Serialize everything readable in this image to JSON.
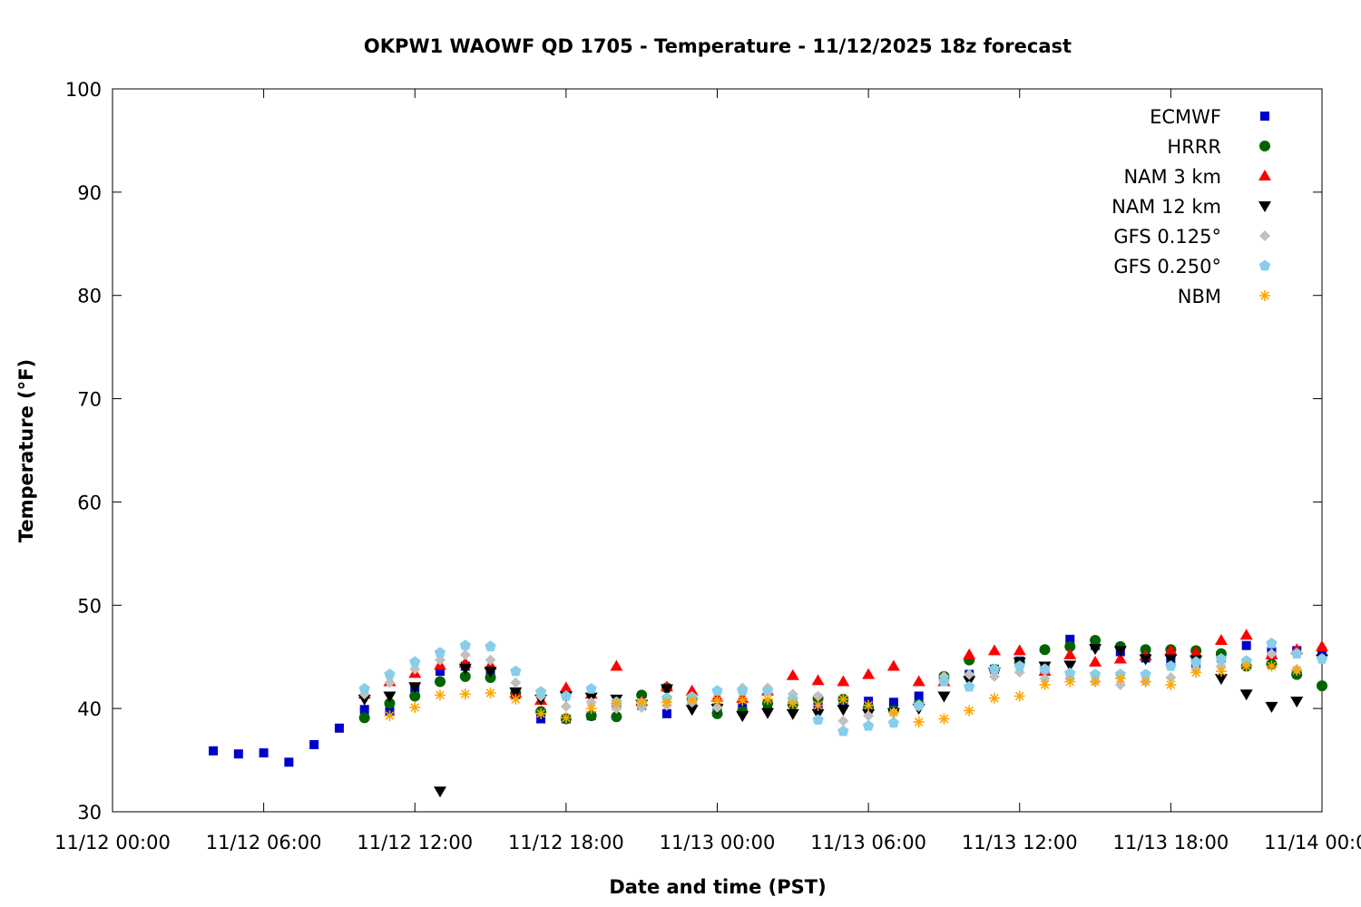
{
  "chart_data": {
    "type": "scatter",
    "title": "OKPW1 WAOWF QD 1705 - Temperature - 11/12/2025 18z forecast",
    "xlabel": "Date and time (PST)",
    "ylabel": "Temperature (°F)",
    "x_unit": "hours since 11/12 00:00 PST",
    "xlim": [
      0,
      48
    ],
    "ylim": [
      30,
      100
    ],
    "x_ticks": [
      {
        "value": 0,
        "label": "11/12 00:00"
      },
      {
        "value": 6,
        "label": "11/12 06:00"
      },
      {
        "value": 12,
        "label": "11/12 12:00"
      },
      {
        "value": 18,
        "label": "11/12 18:00"
      },
      {
        "value": 24,
        "label": "11/13 00:00"
      },
      {
        "value": 30,
        "label": "11/13 06:00"
      },
      {
        "value": 36,
        "label": "11/13 12:00"
      },
      {
        "value": 42,
        "label": "11/13 18:00"
      },
      {
        "value": 48,
        "label": "11/14 00:00"
      }
    ],
    "y_ticks": [
      30,
      40,
      50,
      60,
      70,
      80,
      90,
      100
    ],
    "grid": false,
    "legend_position": "top-right",
    "series": [
      {
        "name": "ECMWF",
        "marker": "square",
        "color": "#0000cc",
        "start_hour": 4,
        "values": [
          35.9,
          35.6,
          35.7,
          34.8,
          36.5,
          38.1,
          39.9,
          39.7,
          42.0,
          43.6,
          44.1,
          43.6,
          41.3,
          39.0,
          39.0,
          39.3,
          40.3,
          40.3,
          39.5,
          40.8,
          40.1,
          40.1,
          40.4,
          40.5,
          40.3,
          40.7,
          40.7,
          40.6,
          41.2,
          43.0,
          43.3,
          43.8,
          44.6,
          43.9,
          46.7,
          46.1,
          45.5,
          44.9,
          44.6,
          44.4,
          44.9,
          46.1,
          45.5,
          45.6,
          45.5
        ]
      },
      {
        "name": "HRRR",
        "marker": "circle",
        "color": "#006400",
        "start_hour": 10,
        "values": [
          39.1,
          40.5,
          41.2,
          42.6,
          43.1,
          43.0,
          41.5,
          39.7,
          39.0,
          39.3,
          39.2,
          41.3,
          42.0,
          40.9,
          39.5,
          39.7,
          40.5,
          40.4,
          41.0,
          40.9,
          40.1,
          39.8,
          40.4,
          43.1,
          44.7,
          43.8,
          44.5,
          45.7,
          46.0,
          46.6,
          46.0,
          45.7,
          45.7,
          45.6,
          45.3,
          44.1,
          44.3,
          43.3,
          42.2
        ]
      },
      {
        "name": "NAM 3 km",
        "marker": "triangle-up",
        "color": "#ff0000",
        "start_hour": 10,
        "values": [
          41.4,
          42.6,
          43.4,
          44.2,
          44.4,
          44.2,
          41.5,
          40.8,
          42.0,
          41.4,
          44.1,
          40.7,
          42.1,
          41.7,
          41.1,
          41.0,
          41.7,
          43.2,
          42.7,
          42.6,
          43.3,
          44.1,
          42.6,
          42.6,
          45.2,
          45.6,
          45.6,
          43.6,
          45.2,
          44.5,
          44.8,
          45.1,
          45.6,
          45.4,
          46.6,
          47.1,
          45.2,
          45.7,
          46.0
        ]
      },
      {
        "name": "NAM 12 km",
        "marker": "triangle-down",
        "color": "#000000",
        "start_hour": 10,
        "values": [
          40.9,
          41.2,
          42.1,
          32.0,
          43.9,
          43.6,
          41.6,
          40.9,
          41.2,
          41.1,
          40.9,
          40.4,
          41.9,
          39.9,
          40.0,
          39.3,
          39.6,
          39.5,
          39.5,
          39.9,
          39.5,
          39.6,
          40.0,
          41.2,
          42.7,
          43.5,
          44.5,
          44.1,
          44.2,
          45.8,
          45.6,
          44.8,
          44.8,
          44.7,
          42.9,
          41.4,
          40.2,
          40.7,
          44.8
        ]
      },
      {
        "name": "GFS 0.125°",
        "marker": "diamond",
        "color": "#c0c0c0",
        "start_hour": 10,
        "values": [
          41.4,
          42.5,
          43.8,
          44.7,
          45.2,
          44.7,
          42.5,
          41.2,
          40.2,
          40.6,
          40.0,
          40.1,
          40.3,
          40.6,
          40.1,
          42.0,
          42.0,
          41.4,
          41.2,
          38.8,
          39.3,
          39.6,
          40.2,
          43.1,
          43.3,
          43.1,
          43.5,
          42.9,
          42.9,
          42.6,
          42.3,
          42.6,
          43.0,
          43.8,
          44.1,
          44.4,
          45.3,
          43.8,
          44.8
        ]
      },
      {
        "name": "GFS 0.250°",
        "marker": "pentagon",
        "color": "#87ceeb",
        "start_hour": 10,
        "values": [
          41.9,
          43.3,
          44.5,
          45.4,
          46.1,
          46.0,
          43.6,
          41.6,
          41.2,
          41.9,
          40.6,
          40.5,
          41.0,
          41.1,
          41.7,
          41.7,
          41.7,
          40.9,
          38.9,
          37.8,
          38.3,
          38.6,
          40.3,
          42.6,
          42.1,
          43.8,
          44.1,
          43.8,
          43.4,
          43.3,
          43.3,
          43.3,
          44.1,
          44.5,
          44.8,
          44.6,
          46.3,
          45.3,
          44.8
        ]
      },
      {
        "name": "NBM",
        "marker": "asterisk",
        "color": "#ffa500",
        "start_hour": 11,
        "values": [
          39.3,
          40.1,
          41.3,
          41.4,
          41.5,
          40.9,
          39.5,
          39.1,
          40.0,
          40.5,
          40.6,
          40.6,
          40.8,
          40.8,
          40.8,
          40.9,
          40.5,
          40.3,
          40.9,
          40.3,
          39.6,
          38.7,
          39.0,
          39.8,
          41.0,
          41.2,
          42.3,
          42.6,
          42.6,
          42.9,
          42.6,
          42.3,
          43.5,
          43.6,
          44.1,
          44.1,
          43.7
        ]
      }
    ]
  }
}
